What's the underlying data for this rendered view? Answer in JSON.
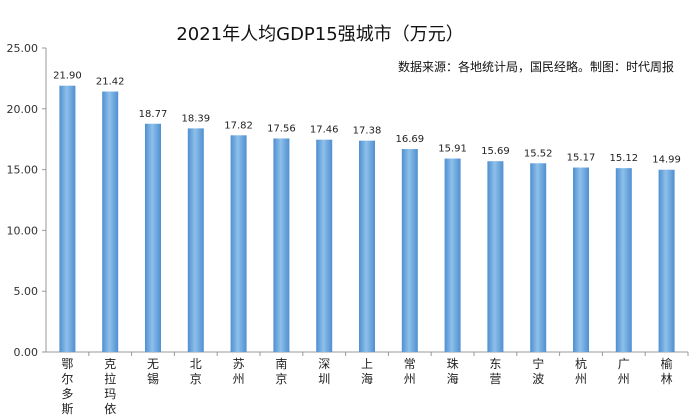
{
  "chart_data": {
    "type": "bar",
    "title": "2021年人均GDP15强城市（万元）",
    "source": "数据来源：各地统计局，国民经略。制图：时代周报",
    "categories": [
      "鄂尔多斯",
      "克拉玛依",
      "无锡",
      "北京",
      "苏州",
      "南京",
      "深圳",
      "上海",
      "常州",
      "珠海",
      "东营",
      "宁波",
      "杭州",
      "广州",
      "榆林"
    ],
    "values": [
      21.9,
      21.42,
      18.77,
      18.39,
      17.82,
      17.56,
      17.46,
      17.38,
      16.69,
      15.91,
      15.69,
      15.52,
      15.17,
      15.12,
      14.99
    ],
    "value_labels": [
      "21.90",
      "21.42",
      "18.77",
      "18.39",
      "17.82",
      "17.56",
      "17.46",
      "17.38",
      "16.69",
      "15.91",
      "15.69",
      "15.52",
      "15.17",
      "15.12",
      "14.99"
    ],
    "yticks": [
      "0.00",
      "5.00",
      "10.00",
      "15.00",
      "20.00",
      "25.00"
    ],
    "ylim": [
      0,
      25
    ],
    "grid": false,
    "legend": "none",
    "bar_color": "#5b9bd5"
  }
}
